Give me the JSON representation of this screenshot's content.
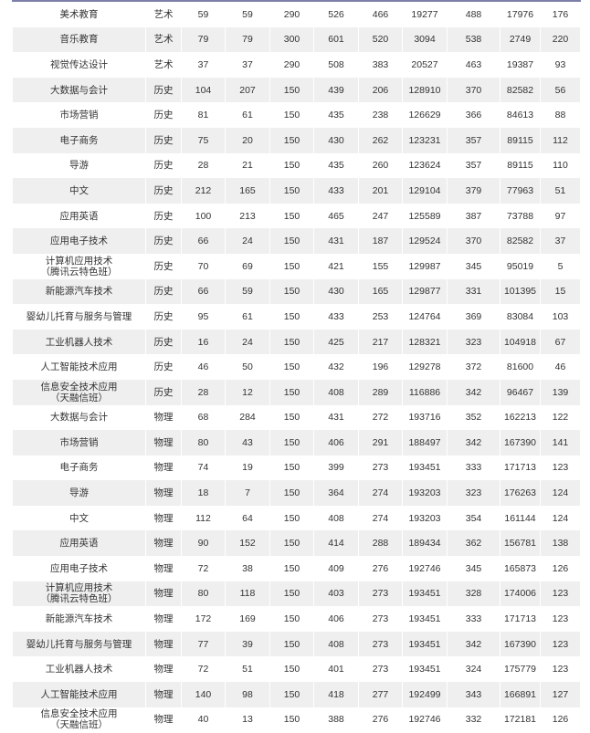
{
  "rows": [
    [
      "美术教育",
      "艺术",
      "59",
      "59",
      "290",
      "526",
      "466",
      "19277",
      "488",
      "17976",
      "176"
    ],
    [
      "音乐教育",
      "艺术",
      "79",
      "79",
      "300",
      "601",
      "520",
      "3094",
      "538",
      "2749",
      "220"
    ],
    [
      "视觉传达设计",
      "艺术",
      "37",
      "37",
      "290",
      "508",
      "383",
      "20527",
      "463",
      "19387",
      "93"
    ],
    [
      "大数据与会计",
      "历史",
      "104",
      "207",
      "150",
      "439",
      "206",
      "128910",
      "370",
      "82582",
      "56"
    ],
    [
      "市场营销",
      "历史",
      "81",
      "61",
      "150",
      "435",
      "238",
      "126629",
      "366",
      "84613",
      "88"
    ],
    [
      "电子商务",
      "历史",
      "75",
      "20",
      "150",
      "430",
      "262",
      "123231",
      "357",
      "89115",
      "112"
    ],
    [
      "导游",
      "历史",
      "28",
      "21",
      "150",
      "435",
      "260",
      "123624",
      "357",
      "89115",
      "110"
    ],
    [
      "中文",
      "历史",
      "212",
      "165",
      "150",
      "433",
      "201",
      "129104",
      "379",
      "77963",
      "51"
    ],
    [
      "应用英语",
      "历史",
      "100",
      "213",
      "150",
      "465",
      "247",
      "125589",
      "387",
      "73788",
      "97"
    ],
    [
      "应用电子技术",
      "历史",
      "66",
      "24",
      "150",
      "431",
      "187",
      "129524",
      "370",
      "82582",
      "37"
    ],
    [
      "计算机应用技术\n（腾讯云特色班）",
      "历史",
      "70",
      "69",
      "150",
      "421",
      "155",
      "129987",
      "345",
      "95019",
      "5"
    ],
    [
      "新能源汽车技术",
      "历史",
      "66",
      "59",
      "150",
      "430",
      "165",
      "129877",
      "331",
      "101395",
      "15"
    ],
    [
      "婴幼儿托育与服务与管理",
      "历史",
      "95",
      "61",
      "150",
      "433",
      "253",
      "124764",
      "369",
      "83084",
      "103"
    ],
    [
      "工业机器人技术",
      "历史",
      "16",
      "24",
      "150",
      "425",
      "217",
      "128321",
      "323",
      "104918",
      "67"
    ],
    [
      "人工智能技术应用",
      "历史",
      "46",
      "50",
      "150",
      "432",
      "196",
      "129278",
      "372",
      "81600",
      "46"
    ],
    [
      "信息安全技术应用\n（天融信班）",
      "历史",
      "28",
      "12",
      "150",
      "408",
      "289",
      "116886",
      "342",
      "96467",
      "139"
    ],
    [
      "大数据与会计",
      "物理",
      "68",
      "284",
      "150",
      "431",
      "272",
      "193716",
      "352",
      "162213",
      "122"
    ],
    [
      "市场营销",
      "物理",
      "80",
      "43",
      "150",
      "406",
      "291",
      "188497",
      "342",
      "167390",
      "141"
    ],
    [
      "电子商务",
      "物理",
      "74",
      "19",
      "150",
      "399",
      "273",
      "193451",
      "333",
      "171713",
      "123"
    ],
    [
      "导游",
      "物理",
      "18",
      "7",
      "150",
      "364",
      "274",
      "193203",
      "323",
      "176263",
      "124"
    ],
    [
      "中文",
      "物理",
      "112",
      "64",
      "150",
      "408",
      "274",
      "193203",
      "354",
      "161144",
      "124"
    ],
    [
      "应用英语",
      "物理",
      "90",
      "152",
      "150",
      "414",
      "288",
      "189434",
      "362",
      "156781",
      "138"
    ],
    [
      "应用电子技术",
      "物理",
      "72",
      "38",
      "150",
      "409",
      "276",
      "192746",
      "345",
      "165873",
      "126"
    ],
    [
      "计算机应用技术\n（腾讯云特色班）",
      "物理",
      "80",
      "118",
      "150",
      "403",
      "273",
      "193451",
      "328",
      "174006",
      "123"
    ],
    [
      "新能源汽车技术",
      "物理",
      "172",
      "169",
      "150",
      "406",
      "273",
      "193451",
      "333",
      "171713",
      "123"
    ],
    [
      "婴幼儿托育与服务与管理",
      "物理",
      "77",
      "39",
      "150",
      "408",
      "273",
      "193451",
      "342",
      "167390",
      "123"
    ],
    [
      "工业机器人技术",
      "物理",
      "72",
      "51",
      "150",
      "401",
      "273",
      "193451",
      "324",
      "175779",
      "123"
    ],
    [
      "人工智能技术应用",
      "物理",
      "140",
      "98",
      "150",
      "418",
      "277",
      "192499",
      "343",
      "166891",
      "127"
    ],
    [
      "信息安全技术应用\n（天融信班）",
      "物理",
      "40",
      "13",
      "150",
      "388",
      "276",
      "192746",
      "332",
      "172181",
      "126"
    ]
  ]
}
